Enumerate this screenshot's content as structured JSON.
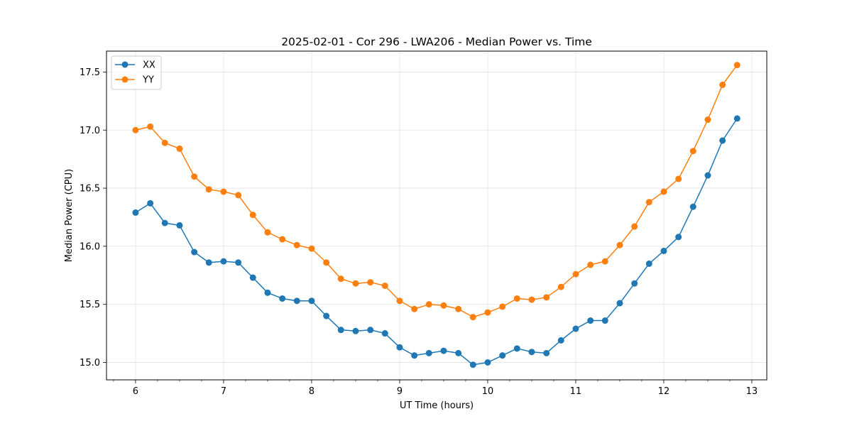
{
  "chart_data": {
    "type": "line",
    "title": "2025-02-01 - Cor 296 - LWA206 - Median Power vs. Time",
    "xlabel": "UT Time (hours)",
    "ylabel": "Median Power (CPU)",
    "xlim": [
      5.67,
      13.17
    ],
    "ylim": [
      14.85,
      17.68
    ],
    "xticks": [
      6,
      7,
      8,
      9,
      10,
      11,
      12,
      13
    ],
    "yticks": [
      15.0,
      15.5,
      16.0,
      16.5,
      17.0,
      17.5
    ],
    "ytick_labels": [
      "15.0",
      "15.5",
      "16.0",
      "16.5",
      "17.0",
      "17.5"
    ],
    "grid": true,
    "legend_position": "top-left",
    "x": [
      6.0,
      6.167,
      6.333,
      6.5,
      6.667,
      6.833,
      7.0,
      7.167,
      7.333,
      7.5,
      7.667,
      7.833,
      8.0,
      8.167,
      8.333,
      8.5,
      8.667,
      8.833,
      9.0,
      9.167,
      9.333,
      9.5,
      9.667,
      9.833,
      10.0,
      10.167,
      10.333,
      10.5,
      10.667,
      10.833,
      11.0,
      11.167,
      11.333,
      11.5,
      11.667,
      11.833,
      12.0,
      12.167,
      12.333,
      12.5,
      12.667,
      12.833
    ],
    "series": [
      {
        "name": "XX",
        "color": "#1f77b4",
        "values": [
          16.29,
          16.37,
          16.2,
          16.18,
          15.95,
          15.86,
          15.87,
          15.86,
          15.73,
          15.6,
          15.55,
          15.53,
          15.53,
          15.4,
          15.28,
          15.27,
          15.28,
          15.25,
          15.13,
          15.06,
          15.08,
          15.1,
          15.08,
          14.98,
          15.0,
          15.06,
          15.12,
          15.09,
          15.08,
          15.19,
          15.29,
          15.36,
          15.36,
          15.51,
          15.68,
          15.85,
          15.96,
          16.08,
          16.34,
          16.61,
          16.91,
          17.1
        ]
      },
      {
        "name": "YY",
        "color": "#ff7f0e",
        "values": [
          17.0,
          17.03,
          16.89,
          16.84,
          16.6,
          16.49,
          16.47,
          16.44,
          16.27,
          16.12,
          16.06,
          16.01,
          15.98,
          15.86,
          15.72,
          15.68,
          15.69,
          15.66,
          15.53,
          15.46,
          15.5,
          15.49,
          15.46,
          15.39,
          15.43,
          15.48,
          15.55,
          15.54,
          15.56,
          15.65,
          15.76,
          15.84,
          15.87,
          16.01,
          16.17,
          16.38,
          16.47,
          16.58,
          16.82,
          17.09,
          17.39,
          17.56
        ]
      }
    ]
  }
}
